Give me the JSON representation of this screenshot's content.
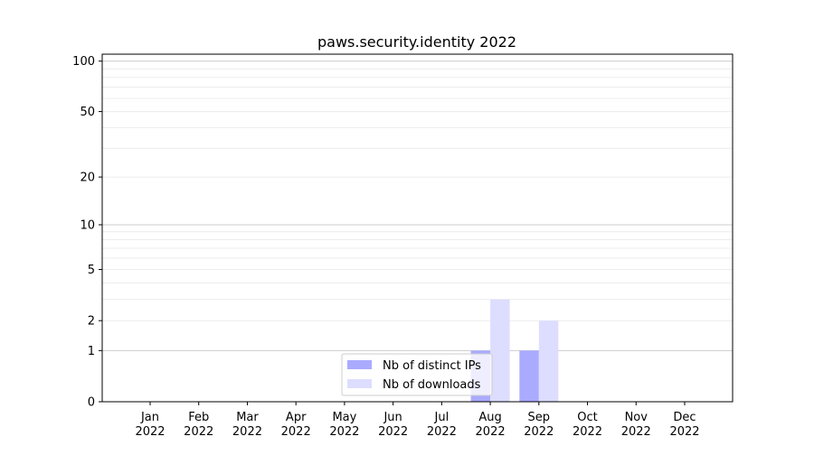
{
  "chart_data": {
    "type": "bar",
    "title": "paws.security.identity 2022",
    "xlabel": "",
    "ylabel": "",
    "yscale": "log(1+y)",
    "ylim": [
      0,
      110
    ],
    "yticks": [
      0,
      1,
      2,
      5,
      10,
      20,
      50,
      100
    ],
    "ytick_labels": [
      "0",
      "1",
      "2",
      "5",
      "10",
      "20",
      "50",
      "100"
    ],
    "grid": true,
    "legend_position": "lower-center",
    "categories": [
      [
        "Jan",
        "2022"
      ],
      [
        "Feb",
        "2022"
      ],
      [
        "Mar",
        "2022"
      ],
      [
        "Apr",
        "2022"
      ],
      [
        "May",
        "2022"
      ],
      [
        "Jun",
        "2022"
      ],
      [
        "Jul",
        "2022"
      ],
      [
        "Aug",
        "2022"
      ],
      [
        "Sep",
        "2022"
      ],
      [
        "Oct",
        "2022"
      ],
      [
        "Nov",
        "2022"
      ],
      [
        "Dec",
        "2022"
      ]
    ],
    "series": [
      {
        "name": "Nb of distinct IPs",
        "color": "#aaaaff",
        "values": [
          0,
          0,
          0,
          0,
          0,
          0,
          0,
          1,
          1,
          0,
          0,
          0
        ]
      },
      {
        "name": "Nb of downloads",
        "color": "#ddddff",
        "values": [
          0,
          0,
          0,
          0,
          0,
          0,
          0,
          3,
          2,
          0,
          0,
          0
        ]
      }
    ]
  }
}
